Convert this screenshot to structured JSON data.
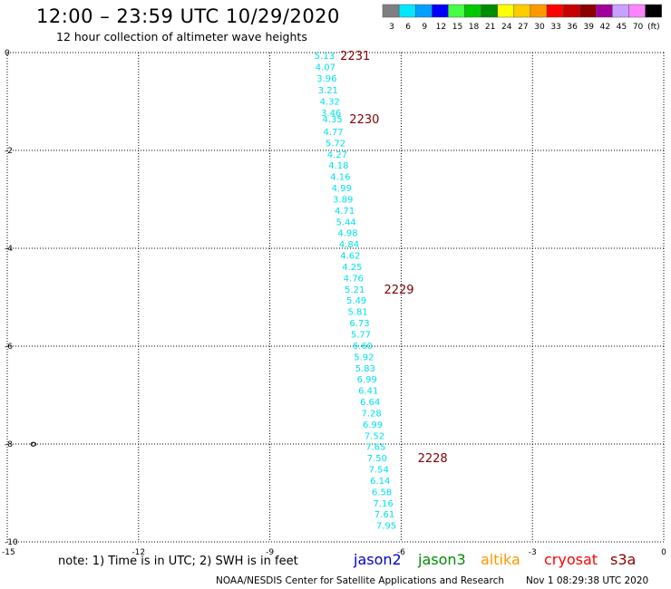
{
  "header": {
    "title": "12:00 – 23:59 UTC 10/29/2020",
    "subtitle": "12 hour collection of altimeter wave heights"
  },
  "legend": {
    "unit": "(ft)",
    "bins": [
      {
        "label": "3",
        "color": "#7f7f7f"
      },
      {
        "label": "6",
        "color": "#00e8ff"
      },
      {
        "label": "9",
        "color": "#00a0ff"
      },
      {
        "label": "12",
        "color": "#0000ff"
      },
      {
        "label": "15",
        "color": "#44ff44"
      },
      {
        "label": "18",
        "color": "#00c800"
      },
      {
        "label": "21",
        "color": "#008c00"
      },
      {
        "label": "24",
        "color": "#ffff00"
      },
      {
        "label": "27",
        "color": "#ffcc00"
      },
      {
        "label": "30",
        "color": "#ff9900"
      },
      {
        "label": "33",
        "color": "#ff0000"
      },
      {
        "label": "36",
        "color": "#c80000"
      },
      {
        "label": "39",
        "color": "#8c0000"
      },
      {
        "label": "42",
        "color": "#a0009c"
      },
      {
        "label": "45",
        "color": "#c8a0ff"
      },
      {
        "label": "70",
        "color": "#ff82ff"
      },
      {
        "label": "",
        "color": "#000000"
      }
    ]
  },
  "map": {
    "lon_ticks": [
      "-15",
      "-12",
      "-9",
      "-6",
      "-3",
      "0"
    ],
    "lat_ticks": [
      "0",
      "-2",
      "-4",
      "-6",
      "-8",
      "-10"
    ],
    "lon_range": [
      -15,
      0
    ],
    "lat_range": [
      -10,
      0
    ],
    "swh_color": "#00e0ec",
    "time_color": "#800000",
    "points": [
      {
        "lon": -7.75,
        "lat": -0.06,
        "swh": "5.13"
      },
      {
        "lon": -7.73,
        "lat": -0.29,
        "swh": "4.07"
      },
      {
        "lon": -7.7,
        "lat": -0.52,
        "swh": "3.96"
      },
      {
        "lon": -7.67,
        "lat": -0.76,
        "swh": "3.21"
      },
      {
        "lon": -7.63,
        "lat": -0.99,
        "swh": "4.32"
      },
      {
        "lon": -7.6,
        "lat": -1.22,
        "swh": "3.46"
      },
      {
        "lon": -7.57,
        "lat": -1.35,
        "swh": "4.35"
      },
      {
        "lon": -7.55,
        "lat": -1.61,
        "swh": "4.77"
      },
      {
        "lon": -7.5,
        "lat": -1.84,
        "swh": "5.72"
      },
      {
        "lon": -7.46,
        "lat": -2.07,
        "swh": "4.27"
      },
      {
        "lon": -7.43,
        "lat": -2.3,
        "swh": "4.18"
      },
      {
        "lon": -7.39,
        "lat": -2.53,
        "swh": "4.16"
      },
      {
        "lon": -7.36,
        "lat": -2.76,
        "swh": "4.99"
      },
      {
        "lon": -7.33,
        "lat": -2.99,
        "swh": "3.89"
      },
      {
        "lon": -7.29,
        "lat": -3.22,
        "swh": "4.71"
      },
      {
        "lon": -7.26,
        "lat": -3.45,
        "swh": "5.44"
      },
      {
        "lon": -7.22,
        "lat": -3.68,
        "swh": "4.98"
      },
      {
        "lon": -7.19,
        "lat": -3.91,
        "swh": "4.84"
      },
      {
        "lon": -7.16,
        "lat": -4.14,
        "swh": "4.62"
      },
      {
        "lon": -7.12,
        "lat": -4.37,
        "swh": "4.25"
      },
      {
        "lon": -7.09,
        "lat": -4.6,
        "swh": "4.76"
      },
      {
        "lon": -7.06,
        "lat": -4.83,
        "swh": "5.21"
      },
      {
        "lon": -7.02,
        "lat": -5.06,
        "swh": "5.49"
      },
      {
        "lon": -6.99,
        "lat": -5.29,
        "swh": "5.81"
      },
      {
        "lon": -6.95,
        "lat": -5.52,
        "swh": "6.73"
      },
      {
        "lon": -6.92,
        "lat": -5.75,
        "swh": "5.77"
      },
      {
        "lon": -6.88,
        "lat": -5.98,
        "swh": "6.60"
      },
      {
        "lon": -6.85,
        "lat": -6.21,
        "swh": "5.92"
      },
      {
        "lon": -6.82,
        "lat": -6.44,
        "swh": "5.83"
      },
      {
        "lon": -6.78,
        "lat": -6.67,
        "swh": "6.99"
      },
      {
        "lon": -6.75,
        "lat": -6.9,
        "swh": "6.41"
      },
      {
        "lon": -6.71,
        "lat": -7.13,
        "swh": "6.64"
      },
      {
        "lon": -6.68,
        "lat": -7.36,
        "swh": "7.28"
      },
      {
        "lon": -6.65,
        "lat": -7.59,
        "swh": "6.99"
      },
      {
        "lon": -6.61,
        "lat": -7.82,
        "swh": "7.52"
      },
      {
        "lon": -6.58,
        "lat": -8.05,
        "swh": "7.65"
      },
      {
        "lon": -6.55,
        "lat": -8.28,
        "swh": "7.50"
      },
      {
        "lon": -6.51,
        "lat": -8.51,
        "swh": "7.54"
      },
      {
        "lon": -6.48,
        "lat": -8.74,
        "swh": "6.14"
      },
      {
        "lon": -6.44,
        "lat": -8.97,
        "swh": "6.58"
      },
      {
        "lon": -6.41,
        "lat": -9.2,
        "swh": "7.16"
      },
      {
        "lon": -6.38,
        "lat": -9.43,
        "swh": "7.61"
      },
      {
        "lon": -6.34,
        "lat": -9.66,
        "swh": "7.95"
      }
    ],
    "time_labels": [
      {
        "text": "2231",
        "lon": -7.05,
        "lat": -0.06
      },
      {
        "text": "2230",
        "lon": -6.84,
        "lat": -1.35
      },
      {
        "text": "2229",
        "lon": -6.05,
        "lat": -4.83
      },
      {
        "text": "2228",
        "lon": -5.28,
        "lat": -8.28
      }
    ],
    "island": {
      "lon": -14.4,
      "lat": -8.0
    }
  },
  "footer": {
    "note": "note:  1) Time is in UTC;  2) SWH is in feet",
    "satellites": [
      {
        "name": "jason2",
        "color": "#0000cc"
      },
      {
        "name": "jason3",
        "color": "#008c00"
      },
      {
        "name": "altika",
        "color": "#ff9900"
      },
      {
        "name": "cryosat",
        "color": "#ff0000"
      },
      {
        "name": "s3a",
        "color": "#8c0000"
      }
    ],
    "credit": "NOAA/NESDIS Center for Satellite Applications and Research",
    "timestamp": "Nov  1 08:29:38 UTC 2020"
  }
}
